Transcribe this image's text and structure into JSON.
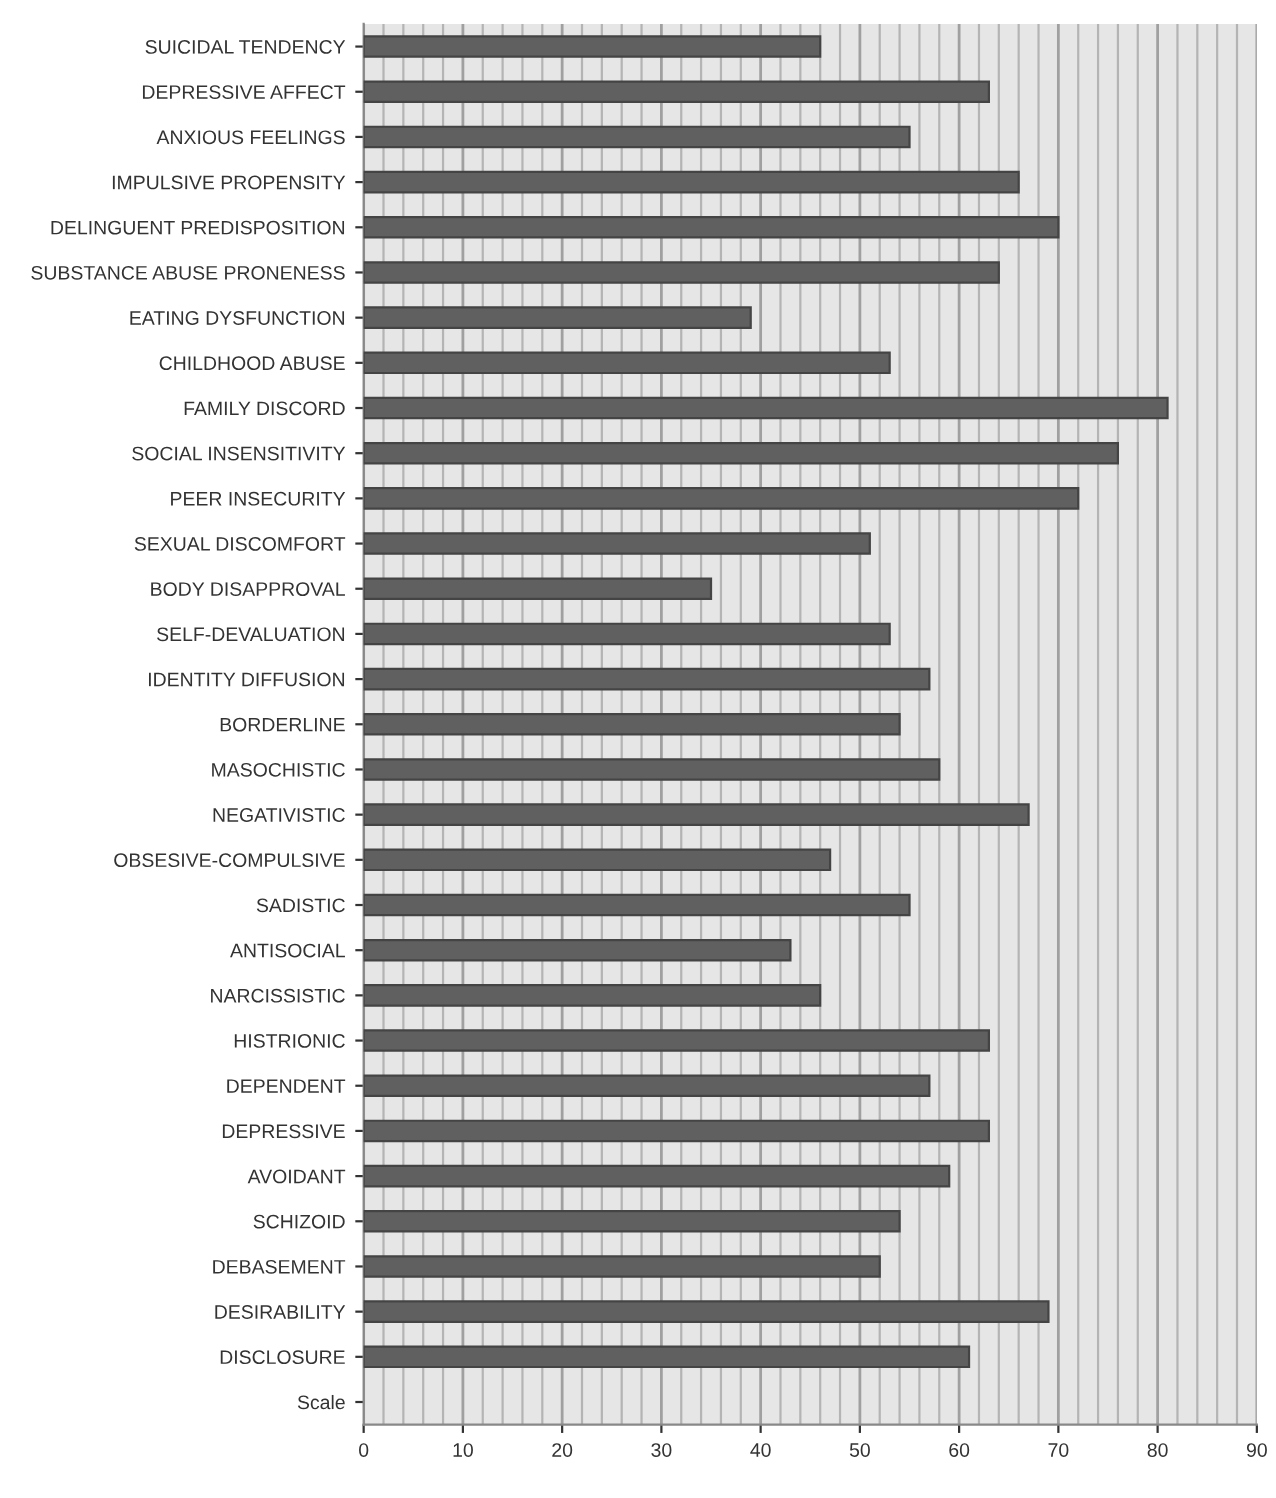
{
  "chart_data": {
    "type": "bar",
    "orientation": "horizontal",
    "categories": [
      "SUICIDAL TENDENCY",
      "DEPRESSIVE AFFECT",
      "ANXIOUS FEELINGS",
      "IMPULSIVE PROPENSITY",
      "DELINGUENT PREDISPOSITION",
      "SUBSTANCE ABUSE PRONENESS",
      "EATING DYSFUNCTION",
      "CHILDHOOD ABUSE",
      "FAMILY DISCORD",
      "SOCIAL INSENSITIVITY",
      "PEER INSECURITY",
      "SEXUAL DISCOMFORT",
      "BODY DISAPPROVAL",
      "SELF-DEVALUATION",
      "IDENTITY DIFFUSION",
      "BORDERLINE",
      "MASOCHISTIC",
      "NEGATIVISTIC",
      "OBSESIVE-COMPULSIVE",
      "SADISTIC",
      "ANTISOCIAL",
      "NARCISSISTIC",
      "HISTRIONIC",
      "DEPENDENT",
      "DEPRESSIVE",
      "AVOIDANT",
      "SCHIZOID",
      "DEBASEMENT",
      "DESIRABILITY",
      "DISCLOSURE",
      "Scale"
    ],
    "values": [
      46,
      63,
      55,
      66,
      70,
      64,
      39,
      53,
      81,
      76,
      72,
      51,
      35,
      53,
      57,
      54,
      58,
      67,
      47,
      55,
      43,
      46,
      63,
      57,
      63,
      59,
      54,
      52,
      69,
      61,
      null
    ],
    "color": "#606060",
    "xlim": [
      0,
      90
    ],
    "xticks": [
      0,
      {
        "value": 2,
        "label": null
      },
      {
        "value": 4,
        "label": null
      },
      {
        "value": 6,
        "label": null
      },
      {
        "value": 8,
        "label": null
      },
      10,
      {
        "value": 12,
        "label": null
      },
      {
        "value": 14,
        "label": null
      },
      {
        "value": 16,
        "label": null
      },
      {
        "value": 18,
        "label": null
      },
      20,
      {
        "value": 22,
        "label": null
      },
      {
        "value": 24,
        "label": null
      },
      {
        "value": 26,
        "label": null
      },
      {
        "value": 28,
        "label": null
      },
      30,
      {
        "value": 32,
        "label": null
      },
      {
        "value": 34,
        "label": null
      },
      {
        "value": 36,
        "label": null
      },
      {
        "value": 38,
        "label": null
      },
      40,
      {
        "value": 42,
        "label": null
      },
      {
        "value": 44,
        "label": null
      },
      {
        "value": 46,
        "label": null
      },
      {
        "value": 48,
        "label": null
      },
      50,
      {
        "value": 52,
        "label": null
      },
      {
        "value": 54,
        "label": null
      },
      {
        "value": 56,
        "label": null
      },
      {
        "value": 58,
        "label": null
      },
      60,
      {
        "value": 62,
        "label": null
      },
      {
        "value": 64,
        "label": null
      },
      {
        "value": 66,
        "label": null
      },
      {
        "value": 68,
        "label": null
      },
      70,
      {
        "value": 72,
        "label": null
      },
      {
        "value": 74,
        "label": null
      },
      {
        "value": 76,
        "label": null
      },
      {
        "value": 78,
        "label": null
      },
      80,
      {
        "value": 82,
        "label": null
      },
      {
        "value": 84,
        "label": null
      },
      {
        "value": 86,
        "label": null
      },
      {
        "value": 88,
        "label": null
      },
      90
    ],
    "grid": "x"
  }
}
